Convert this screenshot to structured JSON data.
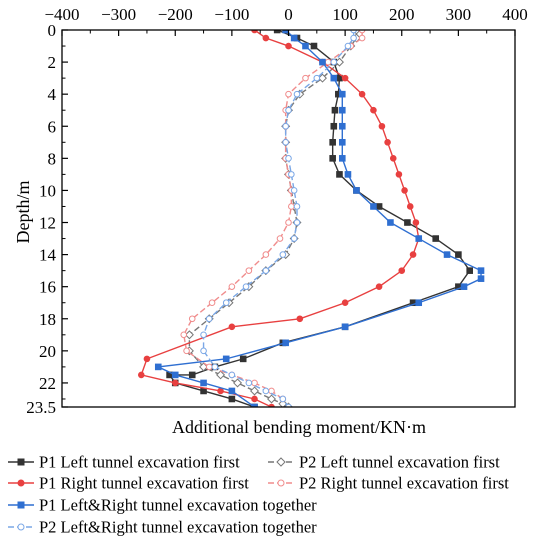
{
  "chart_data": {
    "type": "line",
    "title": "",
    "xlabel": "Additional bending moment/KN·m",
    "ylabel": "Depth/m",
    "x_axis_position": "top",
    "y_axis_inverted": true,
    "xlim": [
      -400,
      400
    ],
    "ylim": [
      0,
      23.5
    ],
    "x_ticks": [
      -400,
      -300,
      -200,
      -100,
      0,
      100,
      200,
      300,
      400
    ],
    "x_tick_labels": [
      "−400",
      "−300",
      "−200",
      "−100",
      "0",
      "100",
      "200",
      "300",
      "400"
    ],
    "y_ticks": [
      0,
      2,
      4,
      6,
      8,
      10,
      12,
      14,
      16,
      18,
      20,
      22,
      23.5
    ],
    "y_tick_labels": [
      "0",
      "2",
      "4",
      "6",
      "8",
      "10",
      "12",
      "14",
      "16",
      "18",
      "20",
      "22",
      "23.5"
    ],
    "grid": false,
    "legend_position": "bottom",
    "series": [
      {
        "name": "P1 Left tunnel excavation first",
        "color": "#333333",
        "marker": "square",
        "filled": true,
        "dashed": false,
        "x": [
          -20,
          15,
          45,
          80,
          90,
          88,
          82,
          80,
          78,
          78,
          90,
          120,
          160,
          210,
          260,
          300,
          320,
          300,
          220,
          100,
          -10,
          -80,
          -130,
          -170,
          -210,
          -200,
          -150,
          -100,
          -60
        ],
        "y": [
          0,
          0.5,
          1,
          2,
          3,
          4,
          5,
          6,
          7,
          8,
          9,
          10,
          11,
          12,
          13,
          14,
          15,
          16,
          17,
          18.5,
          19.5,
          20.5,
          21,
          21.5,
          21.5,
          22,
          22.5,
          23,
          23.5
        ]
      },
      {
        "name": "P2 Left tunnel excavation first",
        "color": "#777777",
        "marker": "diamond",
        "filled": false,
        "dashed": true,
        "x": [
          120,
          120,
          110,
          90,
          60,
          20,
          0,
          -5,
          -5,
          -5,
          0,
          5,
          10,
          15,
          10,
          -5,
          -40,
          -70,
          -105,
          -140,
          -175,
          -175,
          -150,
          -120,
          -90,
          -60,
          -30,
          -10,
          0
        ],
        "y": [
          0,
          0.5,
          1,
          2,
          3,
          4,
          5,
          6,
          7,
          8,
          9,
          10,
          11,
          12,
          13,
          14,
          15,
          16,
          17,
          18,
          19,
          20,
          21,
          21.5,
          22,
          22.5,
          23,
          23.3,
          23.5
        ]
      },
      {
        "name": "P1 Right tunnel excavation first",
        "color": "#e84040",
        "marker": "circle",
        "filled": true,
        "dashed": false,
        "x": [
          -60,
          -40,
          0,
          60,
          100,
          130,
          150,
          165,
          175,
          185,
          195,
          205,
          215,
          225,
          230,
          220,
          200,
          160,
          100,
          20,
          -100,
          -250,
          -260,
          -200,
          -120,
          -60,
          -30
        ],
        "y": [
          0,
          0.5,
          1,
          2,
          3,
          4,
          5,
          6,
          7,
          8,
          9,
          10,
          11,
          12,
          13,
          14,
          15,
          16,
          17,
          18,
          18.5,
          20.5,
          21.5,
          22,
          22.5,
          23,
          23.5
        ]
      },
      {
        "name": "P2 Right tunnel excavation first",
        "color": "#f08c8c",
        "marker": "circle",
        "filled": false,
        "dashed": true,
        "x": [
          130,
          130,
          110,
          70,
          30,
          0,
          -5,
          -5,
          -5,
          -5,
          0,
          5,
          5,
          0,
          -15,
          -40,
          -70,
          -100,
          -135,
          -170,
          -185,
          -180,
          -140,
          -100,
          -60,
          -30,
          -10
        ],
        "y": [
          0,
          0.5,
          1,
          2,
          3,
          4,
          5,
          6,
          7,
          8,
          9,
          10,
          11,
          12,
          13,
          14,
          15,
          16,
          17,
          18,
          19,
          20,
          21,
          21.5,
          22,
          22.5,
          23
        ]
      },
      {
        "name": "P1 Left&Right tunnel excavation together",
        "color": "#2f6fd1",
        "marker": "square",
        "filled": true,
        "dashed": false,
        "x": [
          -5,
          10,
          30,
          60,
          80,
          95,
          95,
          95,
          95,
          95,
          105,
          120,
          150,
          180,
          230,
          280,
          340,
          340,
          310,
          230,
          100,
          -5,
          -110,
          -230,
          -200,
          -150,
          -100,
          -60
        ],
        "y": [
          0,
          0.5,
          1,
          2,
          3,
          4,
          5,
          6,
          7,
          8,
          9,
          10,
          11,
          12,
          13,
          14,
          15,
          15.5,
          16,
          17,
          18.5,
          19.5,
          20.5,
          21,
          21.5,
          22,
          22.5,
          23.5
        ]
      },
      {
        "name": "P2 Left&Right tunnel excavation together",
        "color": "#7aa7e6",
        "marker": "circle",
        "filled": false,
        "dashed": true,
        "x": [
          115,
          115,
          105,
          80,
          50,
          15,
          0,
          -5,
          -5,
          0,
          5,
          10,
          15,
          15,
          10,
          -10,
          -40,
          -75,
          -110,
          -140,
          -150,
          -150,
          -130,
          -100,
          -70,
          -40,
          -10,
          0
        ],
        "y": [
          0,
          0.5,
          1,
          2,
          3,
          4,
          5,
          6,
          7,
          8,
          9,
          10,
          11,
          12,
          13,
          14,
          15,
          16,
          17,
          18,
          19,
          20,
          21,
          21.5,
          22,
          22.5,
          23,
          23.5
        ]
      }
    ]
  }
}
